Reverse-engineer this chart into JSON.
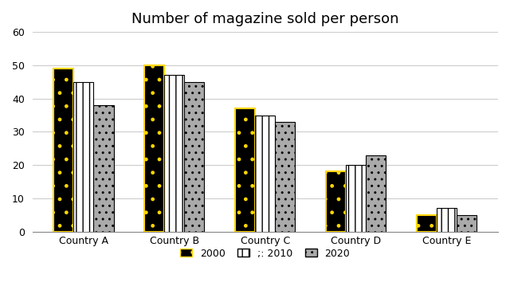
{
  "title": "Number of magazine sold per person",
  "categories": [
    "Country A",
    "Country B",
    "Country C",
    "Country D",
    "Country E"
  ],
  "series": {
    "2000": [
      49,
      50,
      37,
      18,
      5
    ],
    "2010": [
      45,
      47,
      35,
      20,
      7
    ],
    "2020": [
      38,
      45,
      33,
      23,
      5
    ]
  },
  "legend_labels": [
    "2000",
    ";: 2010",
    "2020"
  ],
  "ylim": [
    0,
    60
  ],
  "yticks": [
    0,
    10,
    20,
    30,
    40,
    50,
    60
  ],
  "bar_width": 0.22,
  "background_color": "#ffffff",
  "grid_color": "#cccccc",
  "title_fontsize": 13
}
